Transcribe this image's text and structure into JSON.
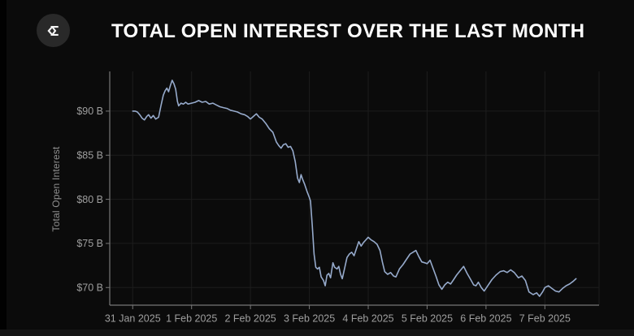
{
  "header": {
    "title": "TOTAL OPEN INTEREST OVER THE LAST MONTH",
    "logo_icon": "sigma-icon"
  },
  "colors": {
    "background": "#0b0b0b",
    "line": "#96aacb",
    "grid": "#1d1d1d",
    "axis": "#777777",
    "tick_label": "#9e9e9e",
    "title_text": "#ffffff",
    "logo_circle": "#292929",
    "bottom_strip": "#161616"
  },
  "chart_data": {
    "type": "line",
    "title": "TOTAL OPEN INTEREST OVER THE LAST MONTH",
    "xlabel": "",
    "ylabel": "Total Open Interest",
    "legend": false,
    "grid": true,
    "x_unit": "days since 31 Jan 2025",
    "x_tick_labels": [
      "31 Jan 2025",
      "1 Feb 2025",
      "2 Feb 2025",
      "3 Feb 2025",
      "4 Feb 2025",
      "5 Feb 2025",
      "6 Feb 2025",
      "7 Feb 2025"
    ],
    "x_tick_positions_days": [
      0,
      1,
      2,
      3,
      4,
      5,
      6,
      7
    ],
    "y_tick_labels": [
      "$70 B",
      "$75 B",
      "$80 B",
      "$85 B",
      "$90 B"
    ],
    "y_tick_values": [
      70,
      75,
      80,
      85,
      90
    ],
    "xlim_days": [
      -0.39,
      7.92
    ],
    "ylim": [
      68.0,
      94.5
    ],
    "series": [
      {
        "name": "total-open-interest-usd-billions",
        "points": [
          [
            0,
            90
          ],
          [
            0.04,
            90
          ],
          [
            0.08,
            89.9
          ],
          [
            0.12,
            89.6
          ],
          [
            0.16,
            89.2
          ],
          [
            0.2,
            89
          ],
          [
            0.24,
            89.4
          ],
          [
            0.27,
            89.6
          ],
          [
            0.31,
            89.2
          ],
          [
            0.35,
            89.5
          ],
          [
            0.39,
            89.1
          ],
          [
            0.44,
            89.3
          ],
          [
            0.48,
            90.6
          ],
          [
            0.52,
            91.8
          ],
          [
            0.55,
            92.3
          ],
          [
            0.58,
            92.6
          ],
          [
            0.61,
            92.2
          ],
          [
            0.64,
            92.9
          ],
          [
            0.67,
            93.5
          ],
          [
            0.7,
            93.1
          ],
          [
            0.73,
            92.5
          ],
          [
            0.76,
            91.1
          ],
          [
            0.78,
            90.6
          ],
          [
            0.82,
            90.9
          ],
          [
            0.86,
            90.8
          ],
          [
            0.9,
            91
          ],
          [
            0.94,
            90.8
          ],
          [
            1,
            90.9
          ],
          [
            1.06,
            91
          ],
          [
            1.12,
            91.2
          ],
          [
            1.18,
            91
          ],
          [
            1.24,
            91.1
          ],
          [
            1.3,
            90.8
          ],
          [
            1.36,
            90.9
          ],
          [
            1.42,
            90.7
          ],
          [
            1.48,
            90.5
          ],
          [
            1.54,
            90.4
          ],
          [
            1.6,
            90.3
          ],
          [
            1.66,
            90.1
          ],
          [
            1.72,
            90
          ],
          [
            1.78,
            89.9
          ],
          [
            1.84,
            89.7
          ],
          [
            1.9,
            89.6
          ],
          [
            1.95,
            89.4
          ],
          [
            2,
            89.1
          ],
          [
            2.05,
            89.4
          ],
          [
            2.1,
            89.7
          ],
          [
            2.15,
            89.3
          ],
          [
            2.2,
            89.1
          ],
          [
            2.26,
            88.6
          ],
          [
            2.32,
            88
          ],
          [
            2.38,
            87.6
          ],
          [
            2.44,
            86.5
          ],
          [
            2.48,
            86.1
          ],
          [
            2.52,
            85.8
          ],
          [
            2.56,
            86.2
          ],
          [
            2.6,
            86.3
          ],
          [
            2.64,
            85.9
          ],
          [
            2.68,
            86
          ],
          [
            2.72,
            85.5
          ],
          [
            2.76,
            84.3
          ],
          [
            2.8,
            82.4
          ],
          [
            2.83,
            81.9
          ],
          [
            2.86,
            82.8
          ],
          [
            2.89,
            82.2
          ],
          [
            2.92,
            81.7
          ],
          [
            2.96,
            80.9
          ],
          [
            3,
            80.2
          ],
          [
            3.02,
            79.8
          ],
          [
            3.05,
            77
          ],
          [
            3.08,
            73.8
          ],
          [
            3.11,
            72.3
          ],
          [
            3.14,
            72.1
          ],
          [
            3.17,
            72.3
          ],
          [
            3.2,
            71.2
          ],
          [
            3.24,
            70.8
          ],
          [
            3.27,
            70.2
          ],
          [
            3.3,
            71.4
          ],
          [
            3.33,
            71.6
          ],
          [
            3.36,
            71.1
          ],
          [
            3.4,
            72.8
          ],
          [
            3.43,
            72.3
          ],
          [
            3.47,
            72.1
          ],
          [
            3.5,
            72.4
          ],
          [
            3.53,
            71.5
          ],
          [
            3.56,
            71
          ],
          [
            3.6,
            72.2
          ],
          [
            3.64,
            73.4
          ],
          [
            3.68,
            73.8
          ],
          [
            3.72,
            74
          ],
          [
            3.76,
            73.6
          ],
          [
            3.8,
            74.4
          ],
          [
            3.84,
            75.2
          ],
          [
            3.88,
            74.7
          ],
          [
            3.92,
            75.1
          ],
          [
            3.96,
            75.4
          ],
          [
            4,
            75.7
          ],
          [
            4.05,
            75.4
          ],
          [
            4.1,
            75.2
          ],
          [
            4.15,
            74.9
          ],
          [
            4.2,
            74.2
          ],
          [
            4.24,
            72.9
          ],
          [
            4.28,
            71.8
          ],
          [
            4.33,
            71.5
          ],
          [
            4.38,
            71.7
          ],
          [
            4.43,
            71.3
          ],
          [
            4.47,
            71.2
          ],
          [
            4.53,
            72.1
          ],
          [
            4.59,
            72.6
          ],
          [
            4.65,
            73.2
          ],
          [
            4.71,
            73.8
          ],
          [
            4.76,
            74
          ],
          [
            4.81,
            74.2
          ],
          [
            4.86,
            73.5
          ],
          [
            4.91,
            72.9
          ],
          [
            4.96,
            72.8
          ],
          [
            5,
            72.7
          ],
          [
            5.05,
            73.1
          ],
          [
            5.1,
            72.2
          ],
          [
            5.15,
            71.3
          ],
          [
            5.2,
            70.3
          ],
          [
            5.25,
            69.8
          ],
          [
            5.3,
            70.3
          ],
          [
            5.35,
            70.6
          ],
          [
            5.4,
            70.4
          ],
          [
            5.45,
            70.9
          ],
          [
            5.5,
            71.4
          ],
          [
            5.56,
            71.9
          ],
          [
            5.62,
            72.4
          ],
          [
            5.68,
            71.6
          ],
          [
            5.74,
            70.9
          ],
          [
            5.79,
            70.3
          ],
          [
            5.83,
            70.2
          ],
          [
            5.87,
            70.6
          ],
          [
            5.92,
            70
          ],
          [
            5.97,
            69.6
          ],
          [
            6.03,
            70.2
          ],
          [
            6.1,
            70.9
          ],
          [
            6.17,
            71.4
          ],
          [
            6.24,
            71.8
          ],
          [
            6.3,
            71.9
          ],
          [
            6.36,
            71.7
          ],
          [
            6.42,
            72
          ],
          [
            6.48,
            71.7
          ],
          [
            6.55,
            71.1
          ],
          [
            6.61,
            71.3
          ],
          [
            6.67,
            70.8
          ],
          [
            6.73,
            69.5
          ],
          [
            6.8,
            69.2
          ],
          [
            6.86,
            69.4
          ],
          [
            6.91,
            69
          ],
          [
            6.96,
            69.5
          ],
          [
            7,
            70
          ],
          [
            7.06,
            70.2
          ],
          [
            7.12,
            69.9
          ],
          [
            7.18,
            69.6
          ],
          [
            7.24,
            69.5
          ],
          [
            7.3,
            69.9
          ],
          [
            7.36,
            70.2
          ],
          [
            7.42,
            70.4
          ],
          [
            7.48,
            70.7
          ],
          [
            7.53,
            71
          ]
        ]
      }
    ]
  }
}
